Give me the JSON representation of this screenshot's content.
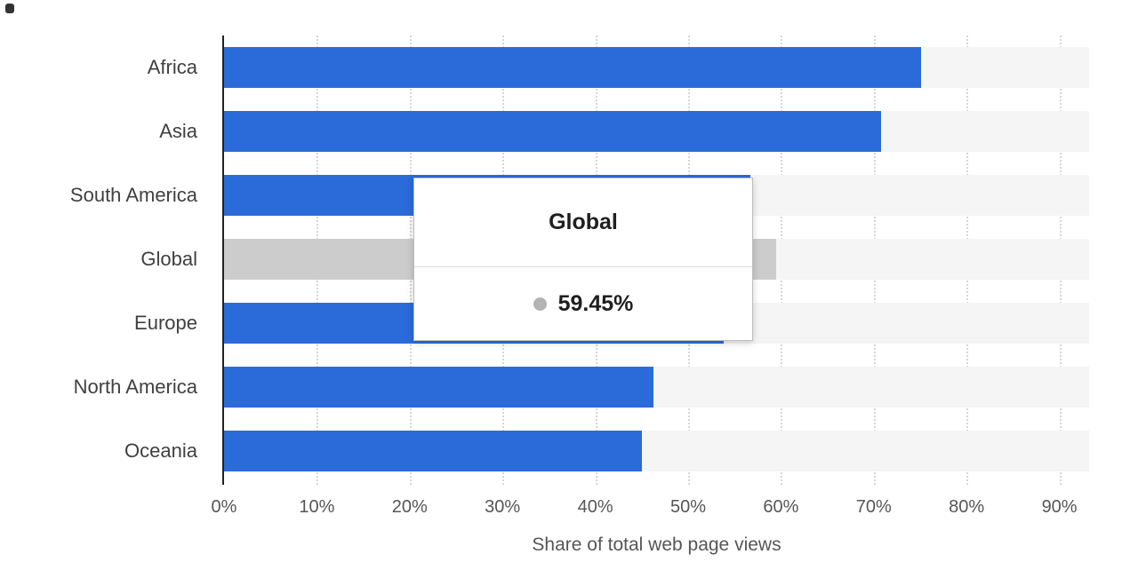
{
  "chart_data": {
    "type": "bar",
    "orientation": "horizontal",
    "categories": [
      "Africa",
      "Asia",
      "South America",
      "Global",
      "Europe",
      "North America",
      "Oceania"
    ],
    "values": [
      75.1,
      70.8,
      56.7,
      59.45,
      53.8,
      46.3,
      45.0
    ],
    "highlighted_category": "Global",
    "title": "",
    "xlabel": "Share of total web page views",
    "ylabel": "",
    "x_ticks": [
      "0%",
      "10%",
      "20%",
      "30%",
      "40%",
      "50%",
      "60%",
      "70%",
      "80%",
      "90%"
    ],
    "xlim": [
      0,
      93.2
    ],
    "grid": "dotted-vertical",
    "bar_color": "#2b6bd9",
    "highlight_bar_color": "#cccccc",
    "track_color": "#f5f5f5"
  },
  "tooltip": {
    "title": "Global",
    "value": "59.45%",
    "marker_color": "#b3b3b3"
  }
}
